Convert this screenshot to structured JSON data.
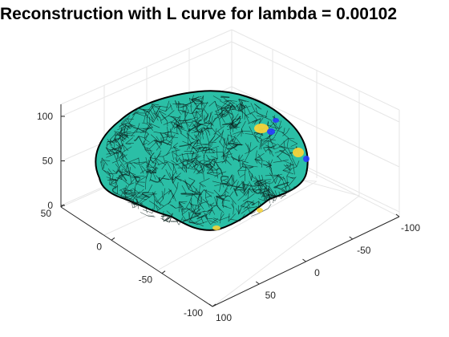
{
  "chart_data": {
    "type": "surface3d",
    "title": "Reconstruction with L curve for lambda = 0.00102",
    "xlabel": "",
    "ylabel": "",
    "zlabel": "",
    "x_ticks": [
      100,
      50,
      0,
      -50,
      -100
    ],
    "y_ticks": [
      50,
      0,
      -50,
      -100
    ],
    "z_ticks": [
      100,
      50,
      0
    ],
    "xlim": [
      -100,
      100
    ],
    "ylim": [
      -100,
      50
    ],
    "zlim": [
      0,
      110
    ],
    "grid": true,
    "surface": {
      "description_colormap": "parula",
      "base_color": "#2bbfa6",
      "edge_color": "#0b1f1c",
      "highlight_colors": [
        "#f5d33a",
        "#2a3cff"
      ]
    }
  }
}
